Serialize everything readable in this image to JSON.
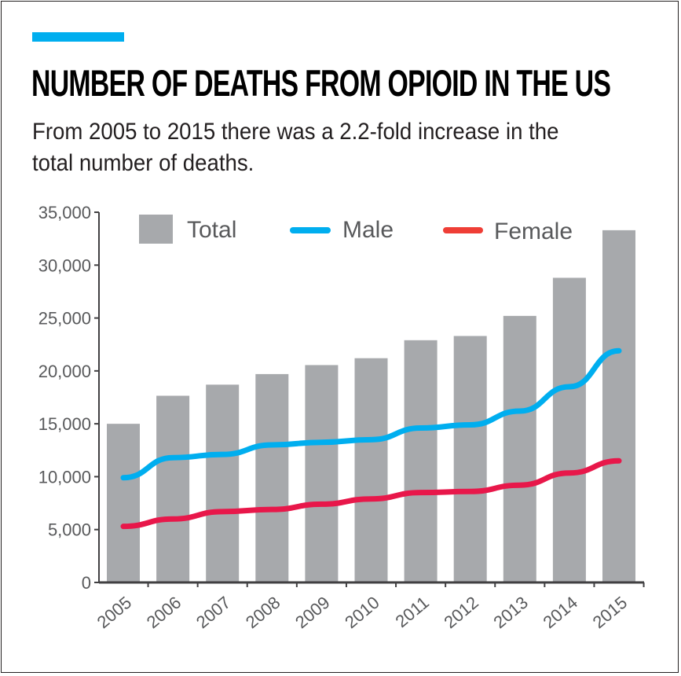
{
  "header": {
    "title": "NUMBER OF DEATHS FROM OPIOID IN THE US",
    "subtitle": "From 2005 to 2015 there was a 2.2-fold increase in the total number of deaths."
  },
  "colors": {
    "accent": "#00aeef",
    "total": "#a7a9ac",
    "male": "#00aeef",
    "female": "#e8174a",
    "female_legend": "#ef3e36"
  },
  "chart_data": {
    "type": "bar",
    "categories": [
      "2005",
      "2006",
      "2007",
      "2008",
      "2009",
      "2010",
      "2011",
      "2012",
      "2013",
      "2014",
      "2015"
    ],
    "series": [
      {
        "name": "Total",
        "type": "bar",
        "values": [
          15000,
          17650,
          18700,
          19700,
          20550,
          21200,
          22900,
          23300,
          25200,
          28800,
          33300
        ]
      },
      {
        "name": "Male",
        "type": "line",
        "values": [
          9900,
          11800,
          12100,
          13000,
          13250,
          13500,
          14600,
          14900,
          16200,
          18500,
          21900
        ]
      },
      {
        "name": "Female",
        "type": "line",
        "values": [
          5300,
          6000,
          6700,
          6900,
          7400,
          7900,
          8500,
          8600,
          9200,
          10350,
          11500
        ]
      }
    ],
    "yticks": [
      "0",
      "5,000",
      "10,000",
      "15,000",
      "20,000",
      "25,000",
      "30,000",
      "35,000"
    ],
    "ylim": [
      0,
      35000
    ],
    "xlabel": "",
    "ylabel": "",
    "legend_position": "top"
  }
}
